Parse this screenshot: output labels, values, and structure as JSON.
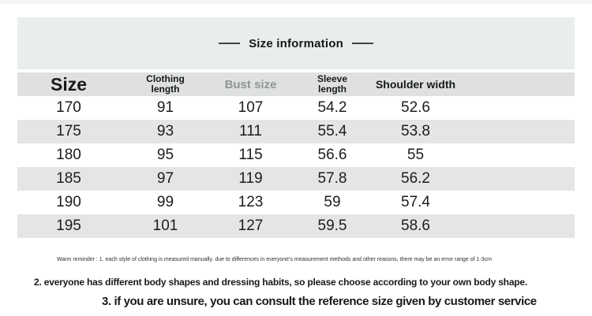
{
  "page": {
    "title": "Size information"
  },
  "colors": {
    "panel_bg": "#e9eeec",
    "header_row_bg": "#dfe1e1",
    "alt_row_bg": "#e4e5e5",
    "bust_header_text": "#8f9595"
  },
  "table": {
    "headers": {
      "size": "Size",
      "clothing_line1": "Clothing",
      "clothing_line2": "length",
      "bust": "Bust size",
      "sleeve_line1": "Sleeve",
      "sleeve_line2": "length",
      "shoulder": "Shoulder width"
    },
    "rows": [
      {
        "size": "170",
        "clothing_length": "91",
        "bust_size": "107",
        "sleeve_length": "54.2",
        "shoulder_width": "52.6"
      },
      {
        "size": "175",
        "clothing_length": "93",
        "bust_size": "111",
        "sleeve_length": "55.4",
        "shoulder_width": "53.8"
      },
      {
        "size": "180",
        "clothing_length": "95",
        "bust_size": "115",
        "sleeve_length": "56.6",
        "shoulder_width": "55"
      },
      {
        "size": "185",
        "clothing_length": "97",
        "bust_size": "119",
        "sleeve_length": "57.8",
        "shoulder_width": "56.2"
      },
      {
        "size": "190",
        "clothing_length": "99",
        "bust_size": "123",
        "sleeve_length": "59",
        "shoulder_width": "57.4"
      },
      {
        "size": "195",
        "clothing_length": "101",
        "bust_size": "127",
        "sleeve_length": "59.5",
        "shoulder_width": "58.6"
      }
    ]
  },
  "notes": {
    "warning": "Warm reminder : 1. each style of clothing is measured manually. due to differences in everyone's measurement methods and other reasons, there may be an error range of 1-3cm",
    "note2": "2. everyone has different body shapes and dressing habits, so please choose according to your own body shape.",
    "note3": "3. if you are unsure, you can consult the reference size given by customer service"
  }
}
